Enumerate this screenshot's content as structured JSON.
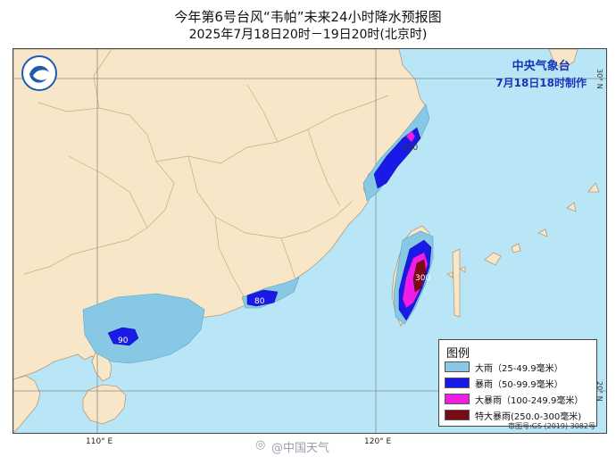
{
  "title": {
    "line1": "今年第6号台风“韦帕”未来24小时降水预报图",
    "line2": "2025年7月18日20时－19日20时(北京时)"
  },
  "agency": {
    "name": "中央气象台",
    "issued": "7月18日18时制作"
  },
  "colors": {
    "sea": "#b9e6f7",
    "land": "#f7e6c8",
    "heavy_rain": "#87c9e5",
    "rainstorm": "#1a1ae6",
    "heavy_rainstorm": "#ee1ee6",
    "extreme_rainstorm": "#7a0a14"
  },
  "graticule": {
    "longitudes": [
      "110° E",
      "120° E"
    ],
    "latitudes": [
      "30° N",
      "20° N"
    ]
  },
  "value_labels": [
    "100",
    "90",
    "80",
    "300"
  ],
  "legend": {
    "title": "图例",
    "items": [
      {
        "label": "大雨（25-49.9毫米）",
        "color": "#87c9e5"
      },
      {
        "label": "暴雨（50-99.9毫米）",
        "color": "#1a1ae6"
      },
      {
        "label": "大暴雨（100-249.9毫米）",
        "color": "#ee1ee6"
      },
      {
        "label": "特大暴雨(250.0-300毫米)",
        "color": "#7a0a14"
      }
    ]
  },
  "review_number": "审图号:GS (2019) 3082号",
  "watermark": "@中国天气",
  "logo_icon": "cma-logo-icon"
}
